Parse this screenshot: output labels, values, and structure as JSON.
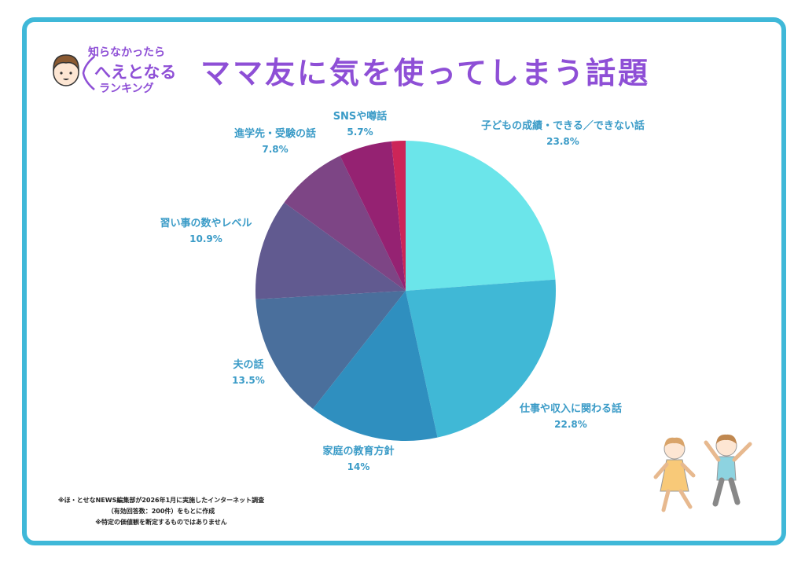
{
  "logo": {
    "line1": "知らなかったら",
    "line2": "へえとなる",
    "line3": "ランキング"
  },
  "title": "ママ友に気を使ってしまう話題",
  "footnote": {
    "line1": "※ほ・とせなNEWS編集部が2026年1月に実施したインターネット調査",
    "line2": "（有効回答数：200件）をもとに作成",
    "line3": "※特定の価値観を断定するものではありません"
  },
  "chart_data": {
    "type": "pie",
    "start_angle_deg": 0,
    "direction": "clockwise",
    "slices": [
      {
        "label": "子どもの成績・できる／できない話",
        "value": 23.8,
        "value_label": "23.8%",
        "color": "#6be5ea"
      },
      {
        "label": "仕事や収入に関わる話",
        "value": 22.8,
        "value_label": "22.8%",
        "color": "#40b8d6"
      },
      {
        "label": "家庭の教育方針",
        "value": 14,
        "value_label": "14%",
        "color": "#2f8fbf"
      },
      {
        "label": "夫の話",
        "value": 13.5,
        "value_label": "13.5%",
        "color": "#4a6f9c"
      },
      {
        "label": "習い事の数やレベル",
        "value": 10.9,
        "value_label": "10.9%",
        "color": "#615a90"
      },
      {
        "label": "進学先・受験の話",
        "value": 7.8,
        "value_label": "7.8%",
        "color": "#7d4585"
      },
      {
        "label": "SNSや噂話",
        "value": 5.7,
        "value_label": "5.7%",
        "color": "#952272"
      },
      {
        "label": "",
        "value": 1.5,
        "value_label": "",
        "color": "#cc2558"
      }
    ]
  }
}
